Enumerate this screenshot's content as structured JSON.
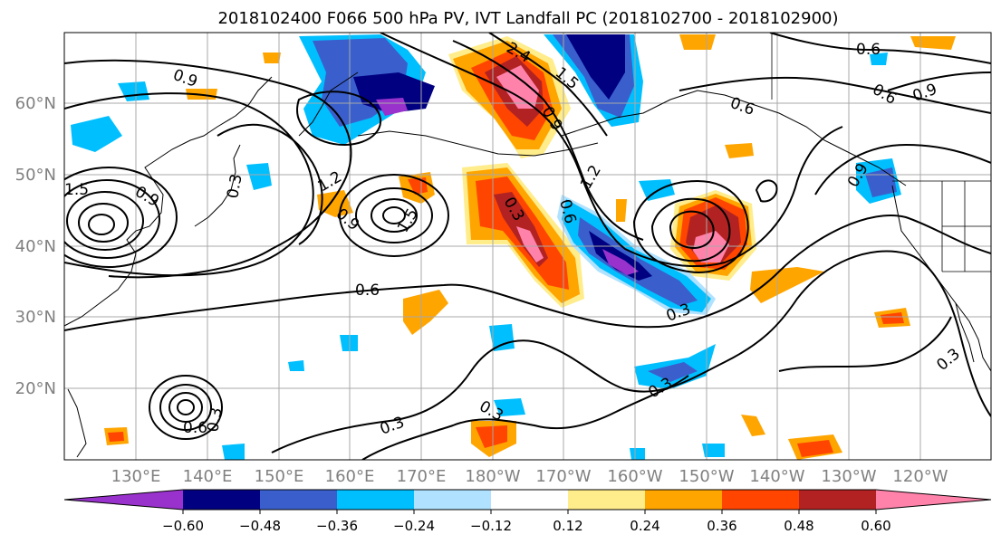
{
  "title": "2018102400 F066 500 hPa PV, IVT Landfall PC (2018102700 - 2018102900)",
  "map": {
    "lon_ticks": [
      "130°E",
      "140°E",
      "150°E",
      "160°E",
      "170°E",
      "180°W",
      "170°W",
      "160°W",
      "150°W",
      "140°W",
      "130°W",
      "120°W"
    ],
    "lat_ticks": [
      "60°N",
      "50°N",
      "40°N",
      "30°N",
      "20°N"
    ],
    "contour_labels": [
      "0.9",
      "0.3",
      "0.9",
      "1.2",
      "1.5",
      "0.9",
      "1.5",
      "0.6",
      "2.4",
      "1.5",
      "0.9",
      "0.3",
      "0.6",
      "1.2",
      "0.6",
      "0.6",
      "0.6",
      "0.9",
      "0.9",
      "0.3",
      "0.3",
      "0.3",
      "0.3",
      "0.3",
      "0.6",
      "0.3"
    ],
    "colors": {
      "purple": "#9932cc",
      "navy": "#000080",
      "royal_blue": "#3a5fcd",
      "deep_sky_blue": "#00bfff",
      "light_blue": "#b0e2ff",
      "yellow": "#ffec8b",
      "orange": "#ffa500",
      "orange_red": "#ff4500",
      "firebrick": "#b22222",
      "pink": "#ff82ab"
    }
  },
  "colorbar": {
    "ticks": [
      "−0.60",
      "−0.48",
      "−0.36",
      "−0.24",
      "−0.12",
      "0.12",
      "0.24",
      "0.36",
      "0.48",
      "0.60"
    ],
    "bins": [
      "#9932cc",
      "#000080",
      "#3a5fcd",
      "#00bfff",
      "#b0e2ff",
      "#ffffff",
      "#ffec8b",
      "#ffa500",
      "#ff4500",
      "#b22222",
      "#ff82ab"
    ]
  }
}
